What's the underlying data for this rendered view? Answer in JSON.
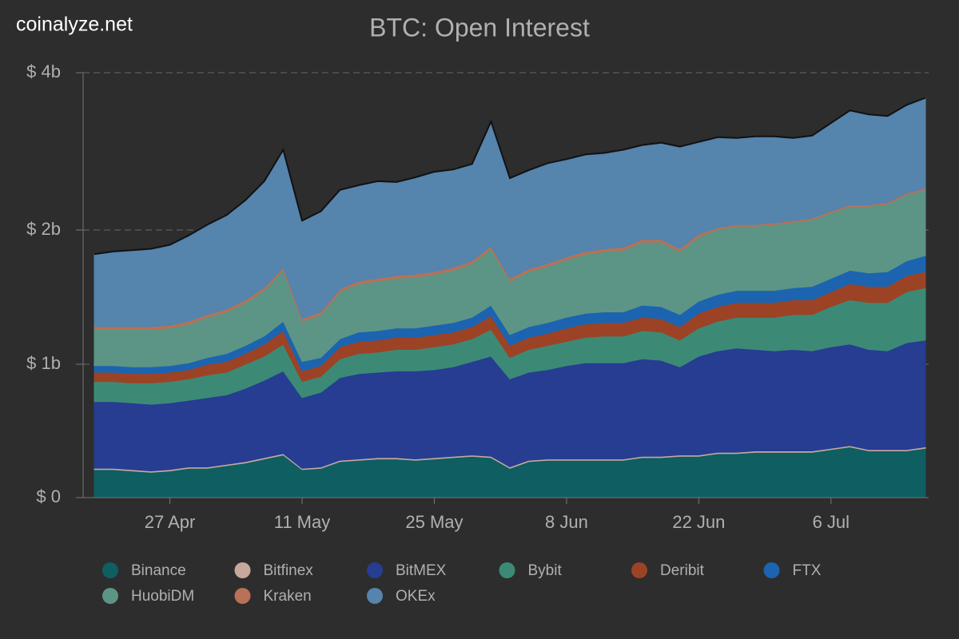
{
  "watermark": "coinalyze.net",
  "chart_data": {
    "type": "stacked-area",
    "title": "BTC: Open Interest",
    "x": [
      "19 Apr",
      "21 Apr",
      "23 Apr",
      "25 Apr",
      "27 Apr",
      "29 Apr",
      "1 May",
      "3 May",
      "5 May",
      "7 May",
      "9 May",
      "11 May",
      "13 May",
      "15 May",
      "17 May",
      "19 May",
      "21 May",
      "23 May",
      "25 May",
      "27 May",
      "29 May",
      "31 May",
      "2 Jun",
      "4 Jun",
      "6 Jun",
      "8 Jun",
      "10 Jun",
      "12 Jun",
      "14 Jun",
      "16 Jun",
      "18 Jun",
      "20 Jun",
      "22 Jun",
      "24 Jun",
      "26 Jun",
      "28 Jun",
      "30 Jun",
      "2 Jul",
      "4 Jul",
      "6 Jul",
      "8 Jul",
      "10 Jul",
      "12 Jul",
      "14 Jul",
      "16 Jul"
    ],
    "xticks": [
      "27 Apr",
      "11 May",
      "25 May",
      "8 Jun",
      "22 Jun",
      "6 Jul"
    ],
    "ylim": [
      0,
      4
    ],
    "yticks": [
      {
        "value": 0,
        "label": "$ 0"
      },
      {
        "value": 1,
        "label": "$ 1b"
      },
      {
        "value": 2,
        "label": "$ 2b"
      },
      {
        "value": 4,
        "label": "$ 4b"
      }
    ],
    "grid": true,
    "series": [
      {
        "name": "Binance",
        "color": "#0e5e62",
        "values": [
          0.21,
          0.21,
          0.2,
          0.19,
          0.2,
          0.22,
          0.22,
          0.24,
          0.26,
          0.29,
          0.32,
          0.21,
          0.22,
          0.27,
          0.28,
          0.29,
          0.29,
          0.28,
          0.29,
          0.3,
          0.31,
          0.3,
          0.22,
          0.27,
          0.28,
          0.28,
          0.28,
          0.28,
          0.28,
          0.3,
          0.3,
          0.31,
          0.31,
          0.33,
          0.33,
          0.34,
          0.34,
          0.34,
          0.34,
          0.36,
          0.38,
          0.35,
          0.35,
          0.35,
          0.37
        ]
      },
      {
        "name": "Bitfinex",
        "color": "#c7a89c",
        "values": [
          0.01,
          0.01,
          0.01,
          0.01,
          0.01,
          0.01,
          0.01,
          0.01,
          0.01,
          0.01,
          0.01,
          0.01,
          0.01,
          0.01,
          0.01,
          0.01,
          0.01,
          0.01,
          0.01,
          0.01,
          0.01,
          0.01,
          0.01,
          0.01,
          0.01,
          0.01,
          0.01,
          0.01,
          0.01,
          0.01,
          0.01,
          0.01,
          0.01,
          0.01,
          0.01,
          0.01,
          0.01,
          0.01,
          0.01,
          0.01,
          0.01,
          0.01,
          0.01,
          0.01,
          0.01
        ]
      },
      {
        "name": "BitMEX",
        "color": "#263d92",
        "values": [
          0.5,
          0.5,
          0.5,
          0.5,
          0.5,
          0.5,
          0.52,
          0.52,
          0.55,
          0.58,
          0.62,
          0.53,
          0.56,
          0.62,
          0.64,
          0.64,
          0.65,
          0.66,
          0.66,
          0.67,
          0.7,
          0.75,
          0.66,
          0.66,
          0.67,
          0.7,
          0.72,
          0.72,
          0.72,
          0.73,
          0.72,
          0.66,
          0.74,
          0.76,
          0.78,
          0.76,
          0.75,
          0.76,
          0.75,
          0.76,
          0.76,
          0.75,
          0.74,
          0.8,
          0.8
        ]
      },
      {
        "name": "Bybit",
        "color": "#3c8a76",
        "values": [
          0.15,
          0.15,
          0.15,
          0.16,
          0.16,
          0.16,
          0.17,
          0.17,
          0.18,
          0.18,
          0.2,
          0.12,
          0.12,
          0.14,
          0.15,
          0.15,
          0.16,
          0.16,
          0.17,
          0.17,
          0.17,
          0.2,
          0.16,
          0.17,
          0.18,
          0.18,
          0.19,
          0.2,
          0.2,
          0.21,
          0.21,
          0.2,
          0.21,
          0.22,
          0.23,
          0.24,
          0.25,
          0.26,
          0.27,
          0.3,
          0.33,
          0.35,
          0.36,
          0.38,
          0.39
        ]
      },
      {
        "name": "Deribit",
        "color": "#9c4326",
        "values": [
          0.07,
          0.07,
          0.07,
          0.07,
          0.07,
          0.07,
          0.08,
          0.08,
          0.08,
          0.09,
          0.1,
          0.08,
          0.08,
          0.09,
          0.09,
          0.09,
          0.09,
          0.09,
          0.09,
          0.09,
          0.09,
          0.1,
          0.09,
          0.09,
          0.09,
          0.1,
          0.1,
          0.1,
          0.1,
          0.1,
          0.1,
          0.1,
          0.11,
          0.11,
          0.11,
          0.11,
          0.11,
          0.11,
          0.11,
          0.11,
          0.12,
          0.12,
          0.12,
          0.12,
          0.12
        ]
      },
      {
        "name": "FTX",
        "color": "#1c64b0",
        "values": [
          0.05,
          0.05,
          0.05,
          0.05,
          0.05,
          0.05,
          0.05,
          0.06,
          0.06,
          0.06,
          0.07,
          0.07,
          0.06,
          0.06,
          0.07,
          0.07,
          0.07,
          0.07,
          0.07,
          0.07,
          0.07,
          0.08,
          0.08,
          0.08,
          0.08,
          0.08,
          0.08,
          0.08,
          0.08,
          0.09,
          0.09,
          0.09,
          0.09,
          0.09,
          0.09,
          0.09,
          0.09,
          0.09,
          0.1,
          0.1,
          0.1,
          0.1,
          0.11,
          0.11,
          0.12
        ]
      },
      {
        "name": "HuobiDM",
        "color": "#5c9585",
        "values": [
          0.27,
          0.27,
          0.28,
          0.28,
          0.28,
          0.29,
          0.3,
          0.31,
          0.32,
          0.34,
          0.38,
          0.3,
          0.32,
          0.35,
          0.36,
          0.37,
          0.37,
          0.38,
          0.38,
          0.39,
          0.4,
          0.42,
          0.4,
          0.41,
          0.42,
          0.43,
          0.44,
          0.45,
          0.46,
          0.47,
          0.48,
          0.47,
          0.48,
          0.49,
          0.5,
          0.5,
          0.52,
          0.53,
          0.55,
          0.58,
          0.6,
          0.62,
          0.64,
          0.68,
          0.7
        ]
      },
      {
        "name": "Kraken",
        "color": "#b97157",
        "values": [
          0.02,
          0.02,
          0.02,
          0.02,
          0.02,
          0.02,
          0.02,
          0.02,
          0.02,
          0.02,
          0.02,
          0.02,
          0.02,
          0.02,
          0.02,
          0.02,
          0.02,
          0.02,
          0.02,
          0.02,
          0.02,
          0.02,
          0.02,
          0.02,
          0.02,
          0.02,
          0.02,
          0.02,
          0.02,
          0.02,
          0.02,
          0.02,
          0.02,
          0.02,
          0.02,
          0.02,
          0.02,
          0.02,
          0.02,
          0.02,
          0.02,
          0.02,
          0.02,
          0.02,
          0.02
        ]
      },
      {
        "name": "OKEx",
        "color": "#5584ad",
        "values": [
          0.54,
          0.56,
          0.57,
          0.58,
          0.6,
          0.64,
          0.7,
          0.78,
          0.9,
          1.05,
          1.3,
          0.78,
          0.85,
          0.95,
          0.95,
          0.98,
          0.95,
          1.0,
          1.05,
          1.05,
          1.07,
          1.5,
          1.02,
          1.05,
          1.1,
          1.1,
          1.12,
          1.12,
          1.15,
          1.15,
          1.18,
          1.2,
          1.15,
          1.15,
          1.1,
          1.12,
          1.1,
          1.05,
          1.05,
          1.12,
          1.2,
          1.15,
          1.1,
          1.12,
          1.15
        ]
      }
    ]
  }
}
